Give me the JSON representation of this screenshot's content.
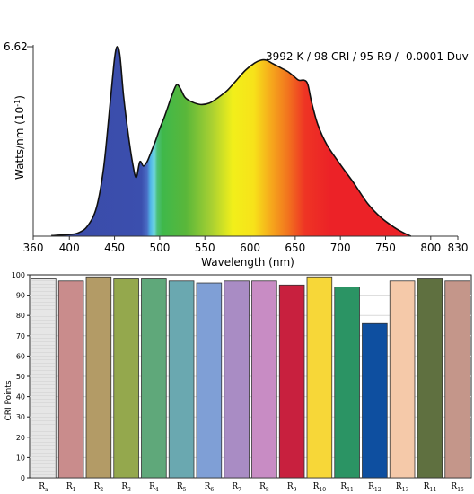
{
  "chart_data": [
    {
      "type": "area",
      "annotation": "3992 K / 98 CRI / 95 R9 / -0.0001 Duv",
      "xlabel": "Wavelength (nm)",
      "ylabel_main": "Watts/nm (10",
      "ylabel_sup": "-1",
      "ylabel_close": ")",
      "ymax_label": "6.62",
      "ylim": [
        0,
        6.62
      ],
      "xlim": [
        360,
        830
      ],
      "xticks": [
        360,
        400,
        450,
        500,
        550,
        600,
        650,
        700,
        750,
        800,
        830
      ],
      "x": [
        380,
        400,
        410,
        420,
        430,
        438,
        445,
        450,
        453,
        456,
        460,
        465,
        470,
        474,
        478,
        482,
        486,
        490,
        495,
        500,
        505,
        510,
        515,
        519,
        523,
        528,
        535,
        545,
        555,
        565,
        575,
        585,
        595,
        605,
        612,
        618,
        624,
        630,
        636,
        642,
        648,
        654,
        660,
        664,
        668,
        675,
        685,
        700,
        715,
        730,
        745,
        760,
        770,
        778
      ],
      "y": [
        0.02,
        0.06,
        0.12,
        0.35,
        1.0,
        2.4,
        4.6,
        6.2,
        6.62,
        6.3,
        4.9,
        3.6,
        2.55,
        2.05,
        2.6,
        2.45,
        2.6,
        2.9,
        3.3,
        3.75,
        4.15,
        4.6,
        5.05,
        5.3,
        5.15,
        4.85,
        4.7,
        4.6,
        4.65,
        4.85,
        5.1,
        5.45,
        5.8,
        6.05,
        6.15,
        6.15,
        6.05,
        5.95,
        5.85,
        5.75,
        5.6,
        5.45,
        5.45,
        5.3,
        4.7,
        3.9,
        3.2,
        2.5,
        1.85,
        1.15,
        0.65,
        0.3,
        0.12,
        0.0
      ]
    },
    {
      "type": "bar",
      "ylabel": "CRI Points",
      "ylim": [
        0,
        100
      ],
      "yticks": [
        0,
        10,
        20,
        30,
        40,
        50,
        60,
        70,
        80,
        90,
        100
      ],
      "categories": [
        {
          "base": "R",
          "sub": "a"
        },
        {
          "base": "R",
          "sub": "1"
        },
        {
          "base": "R",
          "sub": "2"
        },
        {
          "base": "R",
          "sub": "3"
        },
        {
          "base": "R",
          "sub": "4"
        },
        {
          "base": "R",
          "sub": "5"
        },
        {
          "base": "R",
          "sub": "6"
        },
        {
          "base": "R",
          "sub": "7"
        },
        {
          "base": "R",
          "sub": "8"
        },
        {
          "base": "R",
          "sub": "9"
        },
        {
          "base": "R",
          "sub": "10"
        },
        {
          "base": "R",
          "sub": "11"
        },
        {
          "base": "R",
          "sub": "12"
        },
        {
          "base": "R",
          "sub": "13"
        },
        {
          "base": "R",
          "sub": "14"
        },
        {
          "base": "R",
          "sub": "15"
        }
      ],
      "values": [
        98,
        97,
        99,
        98,
        98,
        97,
        96,
        97,
        97,
        95,
        99,
        94,
        76,
        97,
        98,
        97
      ],
      "colors": [
        "#e6e6e6",
        "#c98c8c",
        "#b39b66",
        "#94a84d",
        "#5fa87a",
        "#6aa8b0",
        "#7f9fd6",
        "#a98cc4",
        "#c88cc4",
        "#c8203e",
        "#f7d738",
        "#2b9464",
        "#0e4fa0",
        "#f5c9a9",
        "#5f7040",
        "#c4968a"
      ]
    }
  ]
}
